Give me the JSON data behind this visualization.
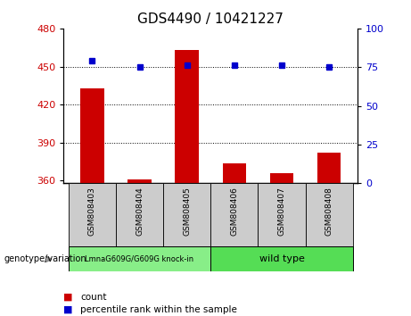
{
  "title": "GDS4490 / 10421227",
  "samples": [
    "GSM808403",
    "GSM808404",
    "GSM808405",
    "GSM808406",
    "GSM808407",
    "GSM808408"
  ],
  "bar_values": [
    433,
    361,
    463,
    374,
    366,
    382
  ],
  "bar_bottom": 358,
  "percentile_values": [
    79,
    75,
    76,
    76,
    76,
    75
  ],
  "bar_color": "#cc0000",
  "percentile_color": "#0000cc",
  "ylim_left": [
    358,
    480
  ],
  "ylim_right": [
    0,
    100
  ],
  "yticks_left": [
    360,
    390,
    420,
    450,
    480
  ],
  "yticks_right": [
    0,
    25,
    50,
    75,
    100
  ],
  "group1_label": "LmnaG609G/G609G knock-in",
  "group2_label": "wild type",
  "group1_color": "#88ee88",
  "group2_color": "#55dd55",
  "group1_samples": [
    0,
    1,
    2
  ],
  "group2_samples": [
    3,
    4,
    5
  ],
  "genotype_label": "genotype/variation",
  "legend_count": "count",
  "legend_percentile": "percentile rank within the sample",
  "title_fontsize": 11,
  "tick_fontsize": 8,
  "sample_bg_color": "#cccccc",
  "bar_color_left": "#cc0000",
  "ylabel_right_color": "#0000cc",
  "dotted_lines": [
    450,
    420,
    390
  ]
}
